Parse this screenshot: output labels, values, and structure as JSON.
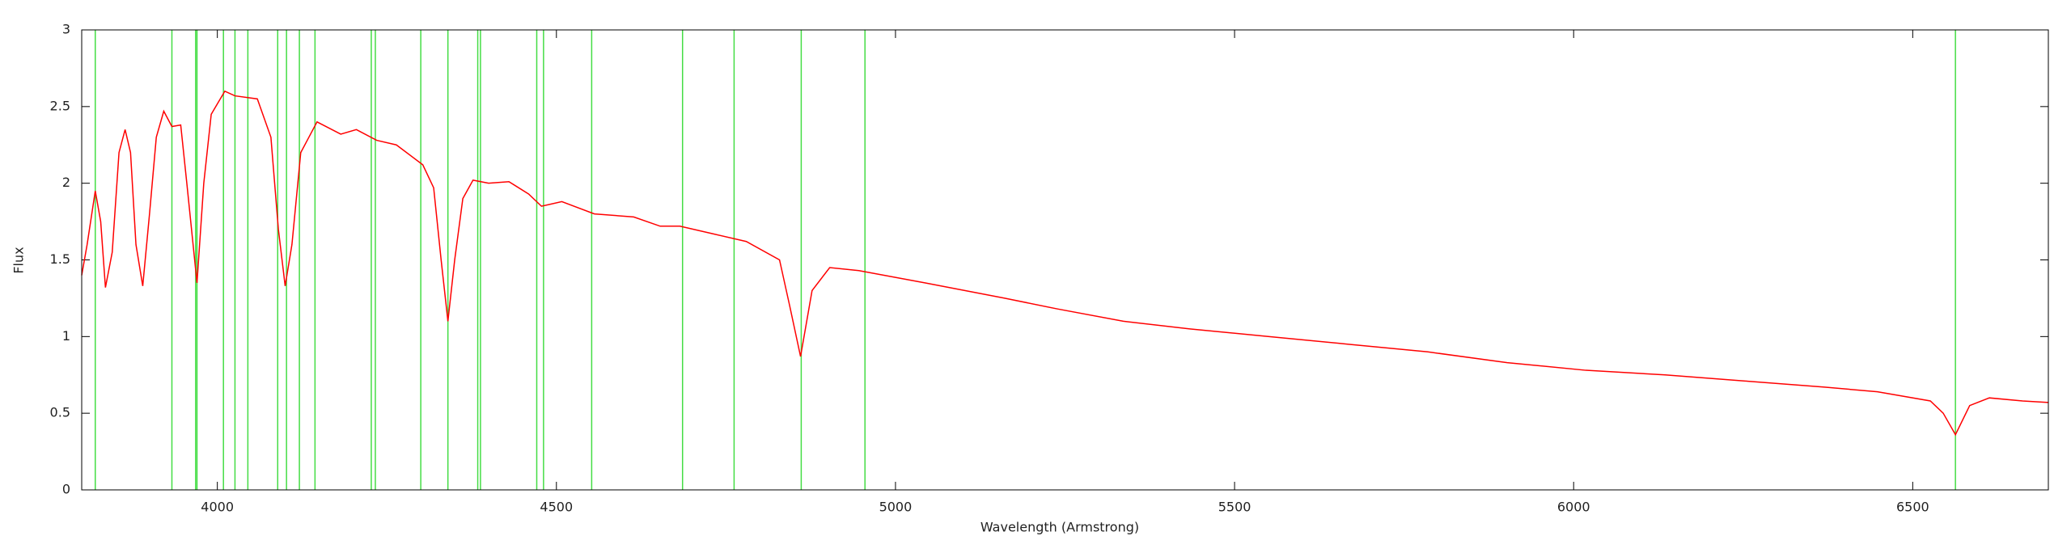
{
  "chart_data": {
    "type": "line",
    "x_label": "Wavelength (Armstrong)",
    "y_label": "Flux",
    "xlim": [
      3800,
      6700
    ],
    "ylim": [
      0,
      3
    ],
    "xticks": [
      4000,
      4500,
      5000,
      5500,
      6000,
      6500
    ],
    "yticks": [
      0,
      0.5,
      1,
      1.5,
      2,
      2.5,
      3
    ],
    "line_color": "#44dd44",
    "lines": [
      3820,
      3933,
      3968,
      3970,
      4009,
      4026,
      4045,
      4089,
      4102,
      4121,
      4144,
      4227,
      4233,
      4300,
      4340,
      4384,
      4388,
      4471,
      4481,
      4552,
      4686,
      4762,
      4861,
      4955,
      6563
    ],
    "x": [
      3800,
      3808,
      3820,
      3828,
      3835,
      3845,
      3855,
      3864,
      3872,
      3880,
      3890,
      3900,
      3910,
      3921,
      3933,
      3946,
      3955,
      3970,
      3980,
      3991,
      4011,
      4026,
      4059,
      4079,
      4090,
      4100,
      4110,
      4123,
      4147,
      4182,
      4205,
      4235,
      4264,
      4303,
      4319,
      4330,
      4340,
      4350,
      4362,
      4377,
      4400,
      4430,
      4459,
      4478,
      4508,
      4556,
      4614,
      4653,
      4682,
      4731,
      4780,
      4829,
      4844,
      4860,
      4877,
      4903,
      4946,
      5044,
      5161,
      5239,
      5336,
      5434,
      5551,
      5668,
      5785,
      5902,
      6018,
      6135,
      6253,
      6370,
      6448,
      6526,
      6545,
      6563,
      6584,
      6613,
      6662,
      6700
    ],
    "series": [
      {
        "name": "Flux",
        "color": "#ff0000",
        "values": [
          1.4,
          1.6,
          1.95,
          1.75,
          1.32,
          1.55,
          2.2,
          2.35,
          2.2,
          1.6,
          1.33,
          1.8,
          2.3,
          2.47,
          2.37,
          2.38,
          2.0,
          1.35,
          2.0,
          2.45,
          2.6,
          2.57,
          2.55,
          2.3,
          1.7,
          1.33,
          1.6,
          2.2,
          2.4,
          2.32,
          2.35,
          2.28,
          2.25,
          2.12,
          1.97,
          1.5,
          1.1,
          1.5,
          1.9,
          2.02,
          2.0,
          2.01,
          1.93,
          1.85,
          1.88,
          1.8,
          1.78,
          1.72,
          1.72,
          1.67,
          1.62,
          1.5,
          1.2,
          0.87,
          1.3,
          1.45,
          1.43,
          1.35,
          1.25,
          1.18,
          1.1,
          1.05,
          1.0,
          0.95,
          0.9,
          0.83,
          0.78,
          0.75,
          0.71,
          0.67,
          0.64,
          0.58,
          0.5,
          0.36,
          0.55,
          0.6,
          0.58,
          0.57
        ]
      }
    ]
  }
}
